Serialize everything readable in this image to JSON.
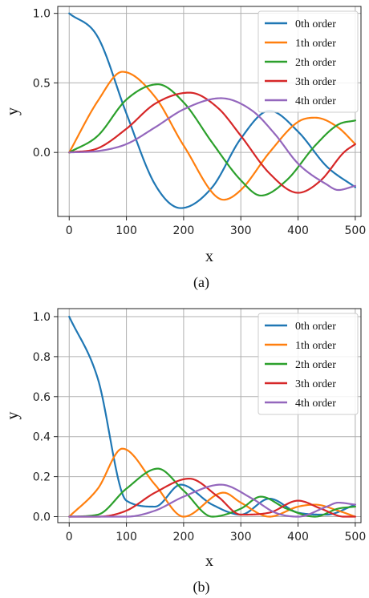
{
  "chart_data": [
    {
      "type": "line",
      "caption": "(a)",
      "xlabel": "x",
      "ylabel": "y",
      "xlim": [
        -20,
        510
      ],
      "ylim": [
        -0.46,
        1.05
      ],
      "xticks": [
        0,
        100,
        200,
        300,
        400,
        500
      ],
      "yticks": [
        0.0,
        0.5,
        1.0
      ],
      "ytick_labels": [
        "0.0",
        "0.5",
        "1.0"
      ],
      "grid": true,
      "legend": "top-right",
      "series": [
        {
          "name": "0th order",
          "color": "#1f77b4",
          "order": 0,
          "x_end": 500,
          "points": [
            [
              0,
              1.0
            ],
            [
              50,
              0.83
            ],
            [
              100,
              0.28
            ],
            [
              150,
              -0.23
            ],
            [
              195,
              -0.4
            ],
            [
              250,
              -0.25
            ],
            [
              300,
              0.1
            ],
            [
              350,
              0.3
            ],
            [
              400,
              0.15
            ],
            [
              450,
              -0.1
            ],
            [
              500,
              -0.25
            ]
          ]
        },
        {
          "name": "1th order",
          "color": "#ff7f0e",
          "order": 1,
          "x_end": 500,
          "points": [
            [
              0,
              0.0
            ],
            [
              50,
              0.37
            ],
            [
              93,
              0.58
            ],
            [
              150,
              0.4
            ],
            [
              200,
              0.05
            ],
            [
              270,
              -0.34
            ],
            [
              300,
              -0.27
            ],
            [
              350,
              0.0
            ],
            [
              400,
              0.22
            ],
            [
              430,
              0.25
            ],
            [
              470,
              0.18
            ],
            [
              500,
              0.06
            ]
          ]
        },
        {
          "name": "2th order",
          "color": "#2ca02c",
          "order": 2,
          "x_end": 500,
          "points": [
            [
              0,
              0.0
            ],
            [
              50,
              0.12
            ],
            [
              100,
              0.38
            ],
            [
              155,
              0.49
            ],
            [
              200,
              0.36
            ],
            [
              250,
              0.07
            ],
            [
              300,
              -0.2
            ],
            [
              335,
              -0.31
            ],
            [
              380,
              -0.2
            ],
            [
              430,
              0.05
            ],
            [
              470,
              0.2
            ],
            [
              500,
              0.23
            ]
          ]
        },
        {
          "name": "3th order",
          "color": "#d62728",
          "order": 3,
          "x_end": 500,
          "points": [
            [
              0,
              0.0
            ],
            [
              50,
              0.03
            ],
            [
              100,
              0.17
            ],
            [
              150,
              0.35
            ],
            [
              210,
              0.43
            ],
            [
              260,
              0.32
            ],
            [
              300,
              0.12
            ],
            [
              350,
              -0.15
            ],
            [
              400,
              -0.29
            ],
            [
              440,
              -0.2
            ],
            [
              480,
              0.0
            ],
            [
              500,
              0.06
            ]
          ]
        },
        {
          "name": "4th order",
          "color": "#9467bd",
          "order": 4,
          "x_end": 500,
          "points": [
            [
              0,
              0.0
            ],
            [
              50,
              0.01
            ],
            [
              100,
              0.06
            ],
            [
              150,
              0.18
            ],
            [
              200,
              0.31
            ],
            [
              265,
              0.39
            ],
            [
              320,
              0.3
            ],
            [
              360,
              0.13
            ],
            [
              400,
              -0.08
            ],
            [
              450,
              -0.23
            ],
            [
              470,
              -0.27
            ],
            [
              500,
              -0.24
            ]
          ]
        }
      ]
    },
    {
      "type": "line",
      "caption": "(b)",
      "xlabel": "x",
      "ylabel": "y",
      "xlim": [
        -20,
        510
      ],
      "ylim": [
        -0.03,
        1.04
      ],
      "xticks": [
        0,
        100,
        200,
        300,
        400,
        500
      ],
      "yticks": [
        0.0,
        0.2,
        0.4,
        0.6,
        0.8,
        1.0
      ],
      "ytick_labels": [
        "0.0",
        "0.2",
        "0.4",
        "0.6",
        "0.8",
        "1.0"
      ],
      "grid": true,
      "legend": "top-right",
      "series": [
        {
          "name": "0th order",
          "color": "#1f77b4",
          "order": 0,
          "x_end": 500,
          "points": [
            [
              0,
              1.0
            ],
            [
              50,
              0.69
            ],
            [
              100,
              0.08
            ],
            [
              150,
              0.05
            ],
            [
              195,
              0.16
            ],
            [
              250,
              0.06
            ],
            [
              300,
              0.01
            ],
            [
              350,
              0.09
            ],
            [
              400,
              0.02
            ],
            [
              450,
              0.01
            ],
            [
              500,
              0.06
            ]
          ]
        },
        {
          "name": "1th order",
          "color": "#ff7f0e",
          "order": 1,
          "x_end": 500,
          "points": [
            [
              0,
              0.0
            ],
            [
              50,
              0.14
            ],
            [
              93,
              0.34
            ],
            [
              150,
              0.16
            ],
            [
              200,
              0.0
            ],
            [
              270,
              0.12
            ],
            [
              300,
              0.07
            ],
            [
              350,
              0.0
            ],
            [
              400,
              0.05
            ],
            [
              430,
              0.06
            ],
            [
              470,
              0.03
            ],
            [
              500,
              0.0
            ]
          ]
        },
        {
          "name": "2th order",
          "color": "#2ca02c",
          "order": 2,
          "x_end": 500,
          "points": [
            [
              0,
              0.0
            ],
            [
              50,
              0.01
            ],
            [
              100,
              0.14
            ],
            [
              155,
              0.24
            ],
            [
              200,
              0.13
            ],
            [
              250,
              0.0
            ],
            [
              300,
              0.04
            ],
            [
              335,
              0.1
            ],
            [
              380,
              0.04
            ],
            [
              430,
              0.0
            ],
            [
              470,
              0.04
            ],
            [
              500,
              0.05
            ]
          ]
        },
        {
          "name": "3th order",
          "color": "#d62728",
          "order": 3,
          "x_end": 500,
          "points": [
            [
              0,
              0.0
            ],
            [
              50,
              0.0
            ],
            [
              100,
              0.03
            ],
            [
              150,
              0.12
            ],
            [
              210,
              0.19
            ],
            [
              260,
              0.1
            ],
            [
              300,
              0.01
            ],
            [
              350,
              0.02
            ],
            [
              400,
              0.08
            ],
            [
              440,
              0.04
            ],
            [
              480,
              0.0
            ],
            [
              500,
              0.0
            ]
          ]
        },
        {
          "name": "4th order",
          "color": "#9467bd",
          "order": 4,
          "x_end": 500,
          "points": [
            [
              0,
              0.0
            ],
            [
              50,
              0.0
            ],
            [
              100,
              0.0
            ],
            [
              150,
              0.03
            ],
            [
              200,
              0.1
            ],
            [
              265,
              0.16
            ],
            [
              320,
              0.09
            ],
            [
              360,
              0.02
            ],
            [
              400,
              0.0
            ],
            [
              450,
              0.05
            ],
            [
              470,
              0.07
            ],
            [
              500,
              0.06
            ]
          ]
        }
      ]
    }
  ]
}
